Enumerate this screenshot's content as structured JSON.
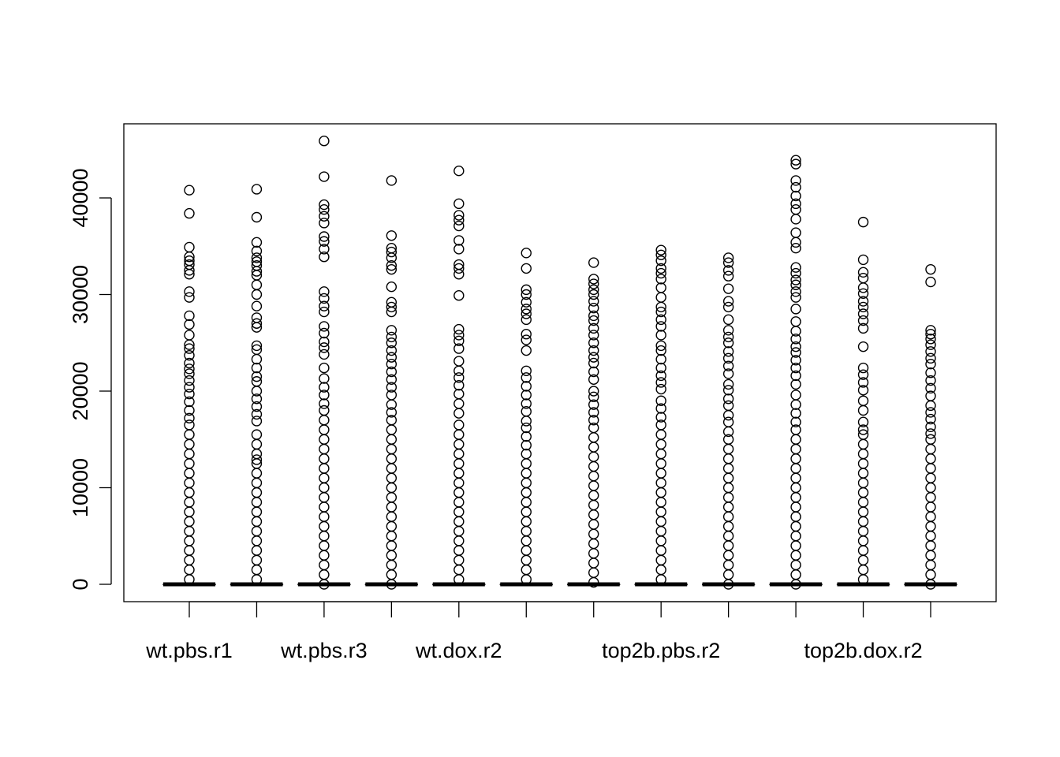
{
  "chart_data": {
    "type": "box",
    "categories": [
      "wt.pbs.r1",
      null,
      "wt.pbs.r3",
      null,
      "wt.dox.r2",
      null,
      null,
      "top2b.pbs.r2",
      null,
      null,
      "top2b.dox.r2",
      null
    ],
    "ylim": [
      -1796,
      47673
    ],
    "yticks": [
      0,
      10000,
      20000,
      30000,
      40000
    ],
    "color": "#000000",
    "boxes": [
      {
        "stats": [
          0,
          0,
          0,
          0,
          0
        ],
        "outliers": [
          40800,
          38400,
          34900,
          33900,
          33500,
          33100,
          32500,
          32100,
          30300,
          29700,
          27800,
          26900,
          25800,
          24800,
          24400,
          23700,
          22900,
          22300,
          21800,
          21100,
          20400,
          19700,
          18900,
          18000,
          17200,
          16500,
          15500,
          14500,
          13500,
          12500,
          11500,
          10500,
          9500,
          8500,
          7500,
          6500,
          5500,
          4500,
          3500,
          2500,
          1500,
          500
        ]
      },
      {
        "stats": [
          0,
          0,
          0,
          0,
          0
        ],
        "outliers": [
          40900,
          38000,
          35400,
          34500,
          33800,
          33400,
          33000,
          32400,
          32000,
          31000,
          30000,
          28800,
          27600,
          27000,
          26600,
          24700,
          24300,
          23300,
          22400,
          21500,
          21000,
          20000,
          19200,
          18400,
          17600,
          16900,
          15500,
          14500,
          13500,
          12900,
          12500,
          11500,
          10500,
          9500,
          8500,
          7500,
          6500,
          5500,
          4500,
          3500,
          2500,
          1500,
          500
        ]
      },
      {
        "stats": [
          0,
          0,
          0,
          0,
          0
        ],
        "outliers": [
          45900,
          42200,
          39300,
          38800,
          38100,
          37400,
          36000,
          35500,
          34700,
          33900,
          30300,
          29600,
          28800,
          28200,
          26700,
          26000,
          25100,
          24500,
          23800,
          22400,
          21300,
          20400,
          19600,
          18700,
          18000,
          17000,
          16000,
          15000,
          14000,
          13000,
          12000,
          11000,
          10000,
          9000,
          8000,
          7000,
          6000,
          5000,
          4000,
          3000,
          2000,
          1000,
          0
        ]
      },
      {
        "stats": [
          0,
          0,
          0,
          0,
          0
        ],
        "outliers": [
          41800,
          36100,
          34800,
          34400,
          33800,
          33000,
          32600,
          30800,
          29200,
          28700,
          28200,
          26300,
          25600,
          25000,
          24200,
          23500,
          22800,
          22000,
          21200,
          20400,
          19600,
          18600,
          17800,
          17000,
          16000,
          15000,
          14000,
          13000,
          12000,
          11000,
          10000,
          9000,
          8000,
          7000,
          6000,
          5000,
          4000,
          3000,
          2000,
          1000,
          0
        ]
      },
      {
        "stats": [
          0,
          0,
          0,
          0,
          0
        ],
        "outliers": [
          42800,
          39400,
          38200,
          37700,
          37100,
          35600,
          34700,
          33100,
          32700,
          32100,
          29900,
          26400,
          25800,
          25200,
          24400,
          23100,
          22100,
          21400,
          20600,
          19700,
          18700,
          17700,
          16500,
          15500,
          14500,
          13500,
          12500,
          11500,
          10500,
          9500,
          8500,
          7500,
          6500,
          5500,
          4500,
          3500,
          2500,
          1500,
          500
        ]
      },
      {
        "stats": [
          0,
          0,
          0,
          0,
          0
        ],
        "outliers": [
          34300,
          32700,
          30500,
          30000,
          29200,
          28500,
          28000,
          27400,
          25900,
          25300,
          24200,
          22100,
          21400,
          20500,
          19600,
          18700,
          17900,
          16900,
          16200,
          15300,
          14400,
          13500,
          12500,
          11500,
          10500,
          9500,
          8500,
          7500,
          6500,
          5500,
          4500,
          3500,
          2500,
          1500,
          500
        ]
      },
      {
        "stats": [
          0,
          0,
          0,
          0,
          0
        ],
        "outliers": [
          33300,
          31600,
          31100,
          30500,
          30000,
          29300,
          28600,
          27800,
          27300,
          26500,
          25800,
          25000,
          24200,
          23500,
          22900,
          22000,
          21200,
          20000,
          19400,
          18600,
          17800,
          17000,
          16200,
          15200,
          14200,
          13200,
          12200,
          11200,
          10200,
          9200,
          8200,
          7200,
          6200,
          5200,
          4200,
          3200,
          2200,
          1200,
          200
        ]
      },
      {
        "stats": [
          0,
          0,
          0,
          0,
          0
        ],
        "outliers": [
          34600,
          34100,
          33500,
          32700,
          32200,
          31600,
          30700,
          29700,
          28700,
          28200,
          27400,
          26700,
          25800,
          24700,
          24200,
          23300,
          22400,
          21600,
          20900,
          20200,
          19000,
          18200,
          17300,
          16500,
          15500,
          14500,
          13500,
          12500,
          11500,
          10500,
          9500,
          8500,
          7500,
          6500,
          5500,
          4500,
          3500,
          2500,
          1500,
          500
        ]
      },
      {
        "stats": [
          0,
          0,
          0,
          0,
          0
        ],
        "outliers": [
          33800,
          33300,
          32500,
          31900,
          30600,
          29300,
          28700,
          27400,
          26300,
          25600,
          25000,
          24100,
          23400,
          22600,
          21800,
          20700,
          20100,
          19200,
          18500,
          17500,
          16800,
          15800,
          15000,
          14000,
          13000,
          12000,
          11000,
          10000,
          9000,
          8000,
          7000,
          6000,
          5000,
          4000,
          3000,
          2000,
          1000,
          0
        ]
      },
      {
        "stats": [
          0,
          0,
          0,
          0,
          0
        ],
        "outliers": [
          43900,
          43500,
          41800,
          41100,
          40200,
          39400,
          38800,
          37800,
          36400,
          35400,
          34800,
          32800,
          32200,
          31500,
          31000,
          30300,
          29700,
          28500,
          27200,
          26200,
          25400,
          24600,
          24000,
          23200,
          22400,
          21600,
          20700,
          19600,
          18600,
          17700,
          16800,
          16000,
          15000,
          14000,
          13000,
          12000,
          11000,
          10000,
          9000,
          8000,
          7000,
          6000,
          5000,
          4000,
          3000,
          2000,
          1000,
          0
        ]
      },
      {
        "stats": [
          0,
          0,
          0,
          0,
          0
        ],
        "outliers": [
          37500,
          33600,
          32300,
          31700,
          30700,
          30100,
          29300,
          28700,
          28000,
          27300,
          26500,
          24600,
          22400,
          21700,
          20900,
          20100,
          19000,
          18000,
          16800,
          16000,
          15500,
          14500,
          13500,
          12500,
          11500,
          10500,
          9500,
          8500,
          7500,
          6500,
          5500,
          4500,
          3500,
          2500,
          1500,
          500
        ]
      },
      {
        "stats": [
          0,
          0,
          0,
          0,
          0
        ],
        "outliers": [
          32600,
          31300,
          26300,
          25900,
          25400,
          24800,
          24100,
          23400,
          22800,
          21900,
          21100,
          20300,
          19500,
          18500,
          17800,
          17100,
          16300,
          15600,
          15000,
          14000,
          13000,
          12000,
          11000,
          10000,
          9000,
          8000,
          7000,
          6000,
          5000,
          4000,
          3000,
          2000,
          1000,
          0
        ]
      }
    ]
  }
}
